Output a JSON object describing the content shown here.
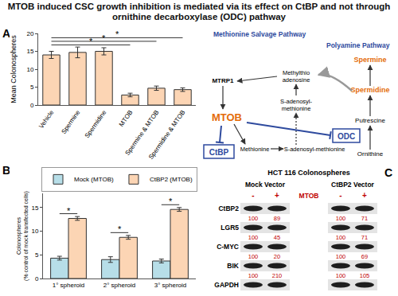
{
  "title": "MTOB induced CSC growth inhibition is mediated via its effect on CtBP and not through ornithine decarboxylase (ODC) pathway",
  "chart_data": [
    {
      "panel_label": "A",
      "type": "bar",
      "categories": [
        "Vehicle",
        "Spermine",
        "Spermidine",
        "MTOB",
        "Spermine & MTOB",
        "Spermidine & MTOB"
      ],
      "values": [
        14,
        14.7,
        15,
        2.8,
        4.7,
        4.3
      ],
      "errors": [
        1,
        1.5,
        1,
        0.5,
        0.6,
        0.5
      ],
      "color": "#fcd5b4",
      "y_label": "Mean Colonospheres",
      "ylim": [
        0,
        20
      ],
      "yticks": [
        0,
        5,
        10,
        15,
        20
      ],
      "significance": [
        {
          "from": "Vehicle",
          "to": "MTOB",
          "label": "*"
        },
        {
          "from": "Vehicle",
          "to": "Spermine & MTOB",
          "label": "*"
        },
        {
          "from": "Vehicle",
          "to": "Spermidine & MTOB",
          "label": "*"
        }
      ]
    },
    {
      "panel_label": "B",
      "type": "bar",
      "categories": [
        "1° spheroid",
        "2° spheroid",
        "3° spheroid"
      ],
      "series": [
        {
          "name": "Mock (MTOB)",
          "color": "#b7dee8",
          "values": [
            4.3,
            4.0,
            3.7
          ],
          "errors": [
            0.4,
            0.6,
            0.4
          ]
        },
        {
          "name": "CtBP2 (MTOB)",
          "color": "#fcd5b4",
          "values": [
            12.7,
            8.7,
            14.6
          ],
          "errors": [
            0.4,
            0.4,
            0.4
          ]
        }
      ],
      "y_label": [
        "Colonospheres",
        "(% control of mock transfected cells)"
      ],
      "ylim": [
        0,
        18
      ],
      "yticks": [
        0,
        5,
        10,
        15
      ],
      "legend": "top",
      "significance": [
        {
          "category": "1° spheroid",
          "label": "*"
        },
        {
          "category": "2° spheroid",
          "label": "*"
        },
        {
          "category": "3° spheroid",
          "label": "*"
        }
      ]
    }
  ],
  "diagram": {
    "nodes": {
      "msp": {
        "label": [
          "Methionine Salvage Pathway"
        ],
        "color": "#2e4a9e"
      },
      "pp": {
        "label": [
          "Polyamine Pathway"
        ],
        "color": "#2e4a9e"
      },
      "spermine": {
        "label": [
          "Spermine"
        ],
        "color": "#e46c0a"
      },
      "spermidine": {
        "label": [
          "Spermidine"
        ],
        "color": "#e46c0a"
      },
      "putrescine": {
        "label": [
          "Putrescine"
        ],
        "color": "#000000"
      },
      "ornithine": {
        "label": [
          "Ornithine"
        ],
        "color": "#000000"
      },
      "mtrp1": {
        "label": [
          "MTRP1"
        ],
        "color": "#000000"
      },
      "mta": {
        "label": [
          "Methylthio",
          "adenosine"
        ],
        "color": "#000000"
      },
      "sam1": {
        "label": [
          "S-adenosyl-",
          "methionine"
        ],
        "color": "#000000"
      },
      "mtob": {
        "label": [
          "MTOB"
        ],
        "color": "#e46c0a"
      },
      "odc": {
        "label": [
          "ODC"
        ],
        "color": "#2e4a9e"
      },
      "ctbp": {
        "label": [
          "CtBP"
        ],
        "color": "#2e4a9e"
      },
      "methionine": {
        "label": [
          "Methionine"
        ],
        "color": "#000000"
      },
      "sam2": {
        "label": [
          "S-adenosyl-methionine"
        ],
        "color": "#000000"
      }
    }
  },
  "blot": {
    "panel_label": "C",
    "title": "HCT 116 Colonospheres",
    "groups": [
      "Mock Vector",
      "CtBP2 Vector"
    ],
    "treatment": "MTOB",
    "levels": [
      "-",
      "+",
      "-",
      "+"
    ],
    "rows": [
      {
        "protein": "CtBP2",
        "values": [
          100,
          89,
          100,
          71
        ]
      },
      {
        "protein": "LGR5",
        "values": [
          100,
          45,
          100,
          71
        ]
      },
      {
        "protein": "C-MYC",
        "values": [
          100,
          20,
          100,
          69
        ]
      },
      {
        "protein": "BIK",
        "values": [
          100,
          210,
          100,
          105
        ]
      },
      {
        "protein": "GAPDH",
        "values": null
      }
    ]
  }
}
